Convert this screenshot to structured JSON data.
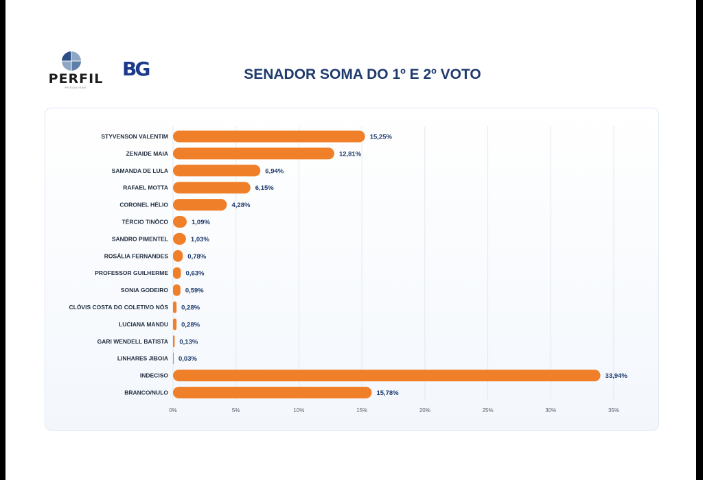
{
  "header": {
    "perfil_logo_text": "PERFIL",
    "perfil_logo_subtext": "PESQUISAS",
    "bg_logo_text": "BG",
    "title": "SENADOR SOMA DO 1º E 2º VOTO"
  },
  "colors": {
    "bar": "#f07f2a",
    "title": "#1f3b6e",
    "grid": "#e2e8f0"
  },
  "chart_data": {
    "type": "bar",
    "orientation": "horizontal",
    "title": "SENADOR SOMA DO 1º E 2º VOTO",
    "xlabel": "",
    "ylabel": "",
    "xlim": [
      0,
      35
    ],
    "grid": true,
    "categories": [
      "STYVENSON VALENTIM",
      "ZENAIDE MAIA",
      "SAMANDA DE LULA",
      "RAFAEL MOTTA",
      "CORONEL HÉLIO",
      "TÉRCIO TINÔCO",
      "SANDRO PIMENTEL",
      "ROSÁLIA FERNANDES",
      "PROFESSOR GUILHERME",
      "SONIA GODEIRO",
      "CLÓVIS COSTA DO COLETIVO NÓS",
      "LUCIANA MANDU",
      "GARI WENDELL BATISTA",
      "LINHARES JIBOIA",
      "INDECISO",
      "BRANCO/NULO"
    ],
    "values": [
      15.25,
      12.81,
      6.94,
      6.15,
      4.28,
      1.09,
      1.03,
      0.78,
      0.63,
      0.59,
      0.28,
      0.28,
      0.13,
      0.03,
      33.94,
      15.78
    ],
    "value_labels": [
      "15,25%",
      "12,81%",
      "6,94%",
      "6,15%",
      "4,28%",
      "1,09%",
      "1,03%",
      "0,78%",
      "0,63%",
      "0,59%",
      "0,28%",
      "0,28%",
      "0,13%",
      "0,03%",
      "33,94%",
      "15,78%"
    ],
    "ticks": [
      0,
      5,
      10,
      15,
      20,
      25,
      30,
      35
    ],
    "tick_labels": [
      "0%",
      "5%",
      "10%",
      "15%",
      "20%",
      "25%",
      "30%",
      "35%"
    ]
  }
}
